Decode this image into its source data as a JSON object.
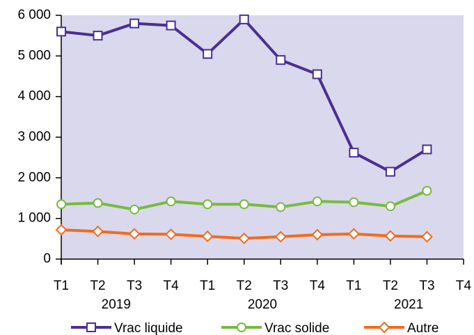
{
  "chart_data": {
    "type": "line",
    "categories": [
      "T1",
      "T2",
      "T3",
      "T4",
      "T1",
      "T2",
      "T3",
      "T4",
      "T1",
      "T2",
      "T3",
      "T4"
    ],
    "years": [
      "2019",
      "2020",
      "2021"
    ],
    "series": [
      {
        "name": "Vrac liquide",
        "color": "#4b2e93",
        "marker": "square",
        "values": [
          5600,
          5500,
          5800,
          5750,
          5050,
          5900,
          4900,
          4550,
          2620,
          2150,
          2700,
          null
        ]
      },
      {
        "name": "Vrac solide",
        "color": "#77bb3f",
        "marker": "circle",
        "values": [
          1350,
          1380,
          1220,
          1420,
          1350,
          1350,
          1280,
          1420,
          1400,
          1300,
          1680,
          null
        ]
      },
      {
        "name": "Autre",
        "color": "#f26b1d",
        "marker": "diamond",
        "values": [
          720,
          680,
          620,
          610,
          560,
          510,
          550,
          600,
          620,
          570,
          550,
          null
        ]
      }
    ],
    "ylim": [
      0,
      6000
    ],
    "yticks": [
      0,
      {
        "value": 1000,
        "label": "1 000"
      },
      {
        "value": 2000,
        "label": "2 000"
      },
      {
        "value": 3000,
        "label": "3 000"
      },
      {
        "value": 4000,
        "label": "4 000"
      },
      {
        "value": 5000,
        "label": "5 000"
      },
      {
        "value": 6000,
        "label": "6 000"
      }
    ],
    "plot_background": "#dad8ec",
    "legend": "bottom"
  }
}
